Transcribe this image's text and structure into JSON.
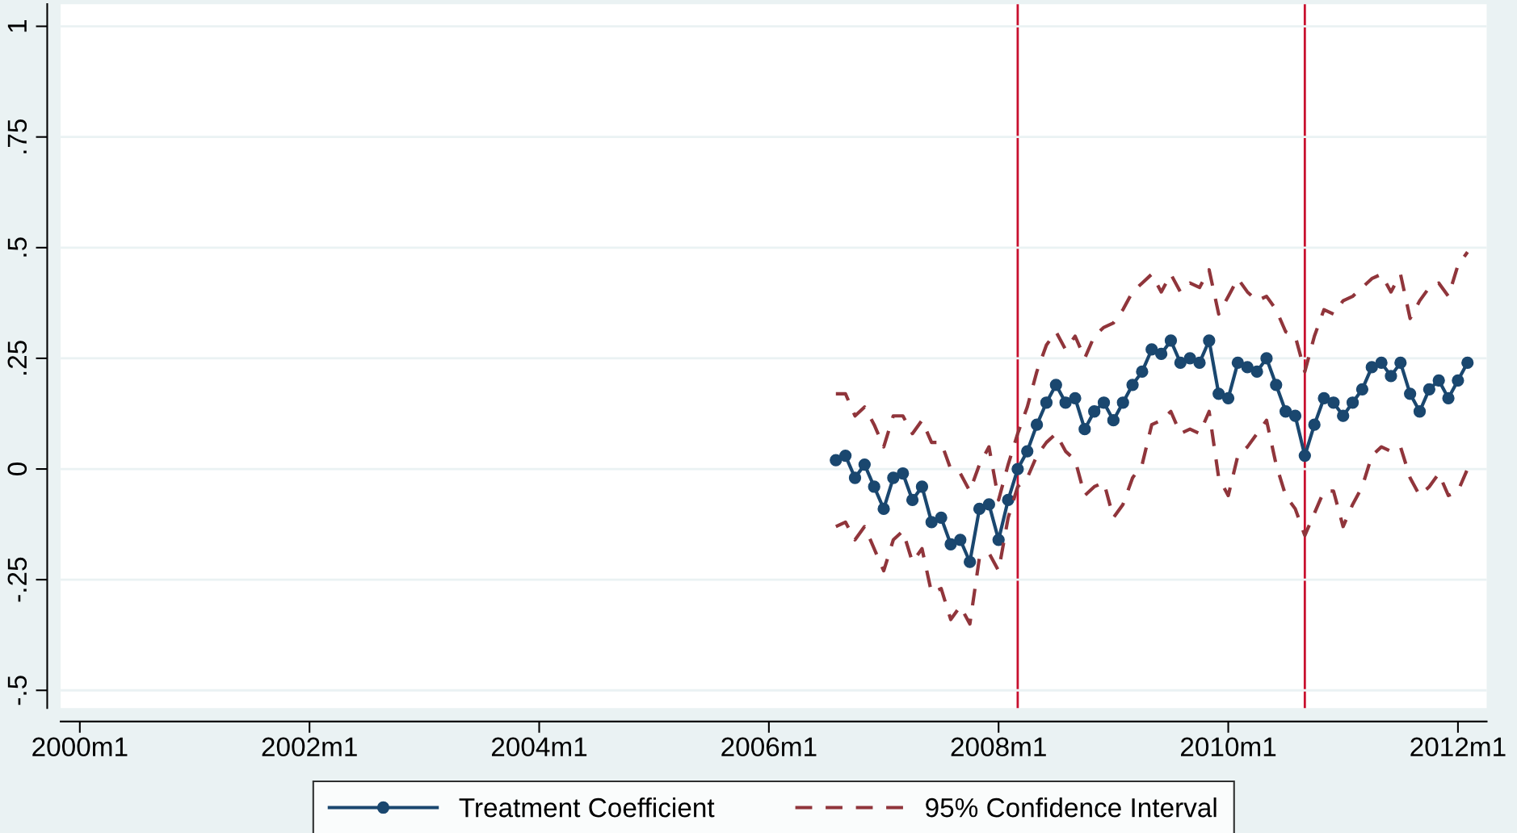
{
  "chart_data": {
    "type": "line",
    "x": [
      "2006-08",
      "2006-09",
      "2006-10",
      "2006-11",
      "2006-12",
      "2007-01",
      "2007-02",
      "2007-03",
      "2007-04",
      "2007-05",
      "2007-06",
      "2007-07",
      "2007-08",
      "2007-09",
      "2007-10",
      "2007-11",
      "2007-12",
      "2008-01",
      "2008-02",
      "2008-03",
      "2008-04",
      "2008-05",
      "2008-06",
      "2008-07",
      "2008-08",
      "2008-09",
      "2008-10",
      "2008-11",
      "2008-12",
      "2009-01",
      "2009-02",
      "2009-03",
      "2009-04",
      "2009-05",
      "2009-06",
      "2009-07",
      "2009-08",
      "2009-09",
      "2009-10",
      "2009-11",
      "2009-12",
      "2010-01",
      "2010-02",
      "2010-03",
      "2010-04",
      "2010-05",
      "2010-06",
      "2010-07",
      "2010-08",
      "2010-09",
      "2010-10",
      "2010-11",
      "2010-12",
      "2011-01",
      "2011-02",
      "2011-03",
      "2011-04",
      "2011-05",
      "2011-06",
      "2011-07",
      "2011-08",
      "2011-09",
      "2011-10",
      "2011-11",
      "2011-12",
      "2012-01",
      "2012-02"
    ],
    "series": [
      {
        "name": "Treatment Coefficient",
        "color": "#1a476f",
        "marker": "circle",
        "line_style": "solid",
        "values": [
          0.02,
          0.03,
          -0.02,
          0.01,
          -0.04,
          -0.09,
          -0.02,
          -0.01,
          -0.07,
          -0.04,
          -0.12,
          -0.11,
          -0.17,
          -0.16,
          -0.21,
          -0.09,
          -0.08,
          -0.16,
          -0.07,
          0.0,
          0.04,
          0.1,
          0.15,
          0.19,
          0.15,
          0.16,
          0.09,
          0.13,
          0.15,
          0.11,
          0.15,
          0.19,
          0.22,
          0.27,
          0.26,
          0.29,
          0.24,
          0.25,
          0.24,
          0.29,
          0.17,
          0.16,
          0.24,
          0.23,
          0.22,
          0.25,
          0.19,
          0.13,
          0.12,
          0.03,
          0.1,
          0.16,
          0.15,
          0.12,
          0.15,
          0.18,
          0.23,
          0.24,
          0.21,
          0.24,
          0.17,
          0.13,
          0.18,
          0.2,
          0.16,
          0.2,
          0.24
        ]
      },
      {
        "name": "95% Confidence Interval",
        "color": "#90353b",
        "marker": "none",
        "line_style": "dashed",
        "values": [
          0.17,
          0.17,
          0.12,
          0.14,
          0.1,
          0.05,
          0.12,
          0.12,
          0.08,
          0.11,
          0.06,
          0.06,
          0.0,
          -0.01,
          -0.05,
          0.01,
          0.05,
          -0.07,
          0.01,
          0.08,
          0.14,
          0.22,
          0.28,
          0.31,
          0.27,
          0.3,
          0.25,
          0.3,
          0.32,
          0.33,
          0.36,
          0.4,
          0.42,
          0.44,
          0.4,
          0.44,
          0.4,
          0.42,
          0.41,
          0.45,
          0.35,
          0.39,
          0.43,
          0.4,
          0.38,
          0.39,
          0.36,
          0.31,
          0.3,
          0.22,
          0.3,
          0.36,
          0.35,
          0.38,
          0.39,
          0.41,
          0.43,
          0.44,
          0.4,
          0.44,
          0.34,
          0.38,
          0.41,
          0.42,
          0.39,
          0.46,
          0.49
        ]
      },
      {
        "color": "#90353b",
        "marker": "none",
        "line_style": "dashed",
        "values": [
          -0.13,
          -0.12,
          -0.16,
          -0.13,
          -0.18,
          -0.23,
          -0.16,
          -0.14,
          -0.21,
          -0.18,
          -0.28,
          -0.27,
          -0.34,
          -0.31,
          -0.35,
          -0.2,
          -0.19,
          -0.23,
          -0.11,
          -0.04,
          -0.02,
          0.03,
          0.06,
          0.08,
          0.04,
          0.02,
          -0.06,
          -0.04,
          -0.03,
          -0.11,
          -0.08,
          -0.02,
          0.01,
          0.1,
          0.11,
          0.13,
          0.08,
          0.09,
          0.08,
          0.13,
          -0.02,
          -0.06,
          0.03,
          0.05,
          0.08,
          0.11,
          0.01,
          -0.06,
          -0.09,
          -0.15,
          -0.1,
          -0.05,
          -0.05,
          -0.13,
          -0.08,
          -0.04,
          0.03,
          0.05,
          0.04,
          0.05,
          -0.02,
          -0.06,
          -0.04,
          -0.01,
          -0.06,
          -0.05,
          0.0
        ]
      }
    ],
    "xlim": [
      "1999-11",
      "2012-04"
    ],
    "xticks": [
      {
        "value": "2000-01",
        "label": "2000m1"
      },
      {
        "value": "2002-01",
        "label": "2002m1"
      },
      {
        "value": "2004-01",
        "label": "2004m1"
      },
      {
        "value": "2006-01",
        "label": "2006m1"
      },
      {
        "value": "2008-01",
        "label": "2008m1"
      },
      {
        "value": "2010-01",
        "label": "2010m1"
      },
      {
        "value": "2012-01",
        "label": "2012m1"
      }
    ],
    "ylim": [
      -0.54,
      1.05
    ],
    "yticks": [
      {
        "value": -0.5,
        "label": "-.5"
      },
      {
        "value": -0.25,
        "label": "-.25"
      },
      {
        "value": 0,
        "label": "0"
      },
      {
        "value": 0.25,
        "label": ".25"
      },
      {
        "value": 0.5,
        "label": ".5"
      },
      {
        "value": 0.75,
        "label": ".75"
      },
      {
        "value": 1,
        "label": "1"
      }
    ],
    "ref_lines": [
      {
        "axis": "x",
        "value": "2008-03",
        "color": "#c8102e"
      },
      {
        "axis": "x",
        "value": "2010-09",
        "color": "#c8102e"
      }
    ],
    "grid": "y",
    "legend": "bottom"
  }
}
